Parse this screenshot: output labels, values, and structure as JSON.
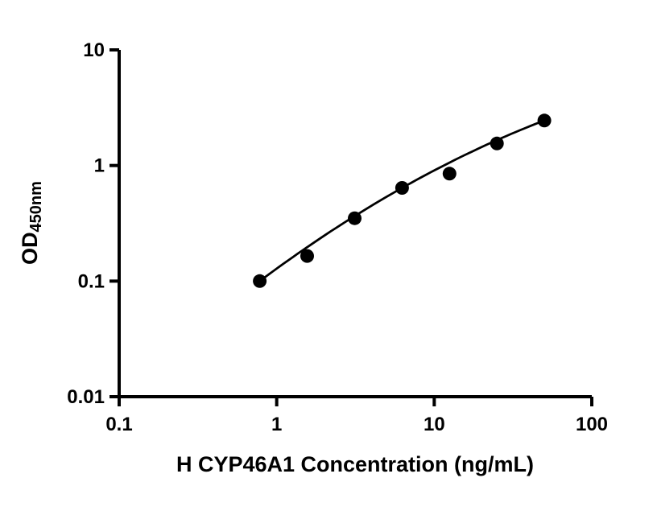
{
  "page": {
    "background_color": "#ffffff",
    "foreground_color": "#000000"
  },
  "chart_data": {
    "type": "scatter",
    "title": "",
    "xlabel": "H CYP46A1 Concentration (ng/mL)",
    "ylabel_base": "OD",
    "ylabel_subscript": "450nm",
    "x_scale": "log",
    "y_scale": "log",
    "xlim": [
      0.1,
      100
    ],
    "ylim": [
      0.01,
      10
    ],
    "x_ticks": [
      0.1,
      1,
      10,
      100
    ],
    "x_tick_labels": [
      "0.1",
      "1",
      "10",
      "100"
    ],
    "y_ticks": [
      0.01,
      0.1,
      1,
      10
    ],
    "y_tick_labels": [
      "0.01",
      "0.1",
      "1",
      "10"
    ],
    "points": [
      {
        "x": 0.78,
        "y": 0.1
      },
      {
        "x": 1.56,
        "y": 0.165
      },
      {
        "x": 3.125,
        "y": 0.35
      },
      {
        "x": 6.25,
        "y": 0.64
      },
      {
        "x": 12.5,
        "y": 0.85
      },
      {
        "x": 25,
        "y": 1.55
      },
      {
        "x": 50,
        "y": 2.45
      }
    ],
    "fit_curve": {
      "type": "smooth standard-curve fit (quadratic in log-log space)",
      "anchors": [
        0,
        3,
        6
      ]
    },
    "marker": {
      "shape": "circle",
      "color": "#000000",
      "radius_px": 8.5
    },
    "line_color": "#000000",
    "axis_color": "#000000",
    "grid": "off",
    "legend": "none"
  }
}
